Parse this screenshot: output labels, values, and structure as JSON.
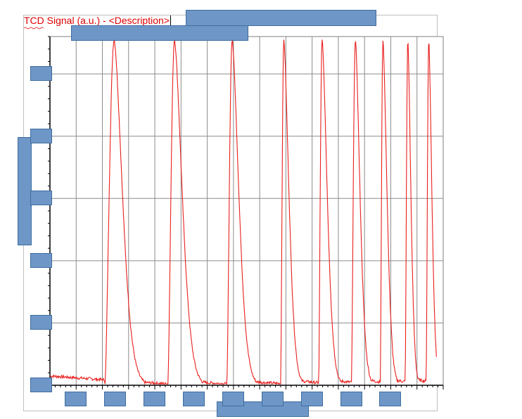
{
  "chart_data": {
    "type": "line",
    "title": "TCD Signal (a.u.) - <Description>",
    "xlabel": "",
    "ylabel": "",
    "xlim": [
      0,
      15
    ],
    "ylim": [
      0,
      5.6
    ],
    "grid": true,
    "legend": "none",
    "color": "#e8201e",
    "pulses": [
      {
        "rise": 2.1,
        "peak": 2.45,
        "decay": 0.8
      },
      {
        "rise": 4.5,
        "peak": 4.75,
        "decay": 0.75
      },
      {
        "rise": 6.75,
        "peak": 6.95,
        "decay": 0.65
      },
      {
        "rise": 8.8,
        "peak": 8.92,
        "decay": 0.5
      },
      {
        "rise": 10.25,
        "peak": 10.38,
        "decay": 0.5
      },
      {
        "rise": 11.5,
        "peak": 11.65,
        "decay": 0.45
      },
      {
        "rise": 12.6,
        "peak": 12.7,
        "decay": 0.4
      },
      {
        "rise": 13.55,
        "peak": 13.65,
        "decay": 0.3
      },
      {
        "rise": 14.35,
        "peak": 14.45,
        "decay": 0.3
      }
    ],
    "peak_value": 5.55,
    "baseline_start": 0.15
  }
}
